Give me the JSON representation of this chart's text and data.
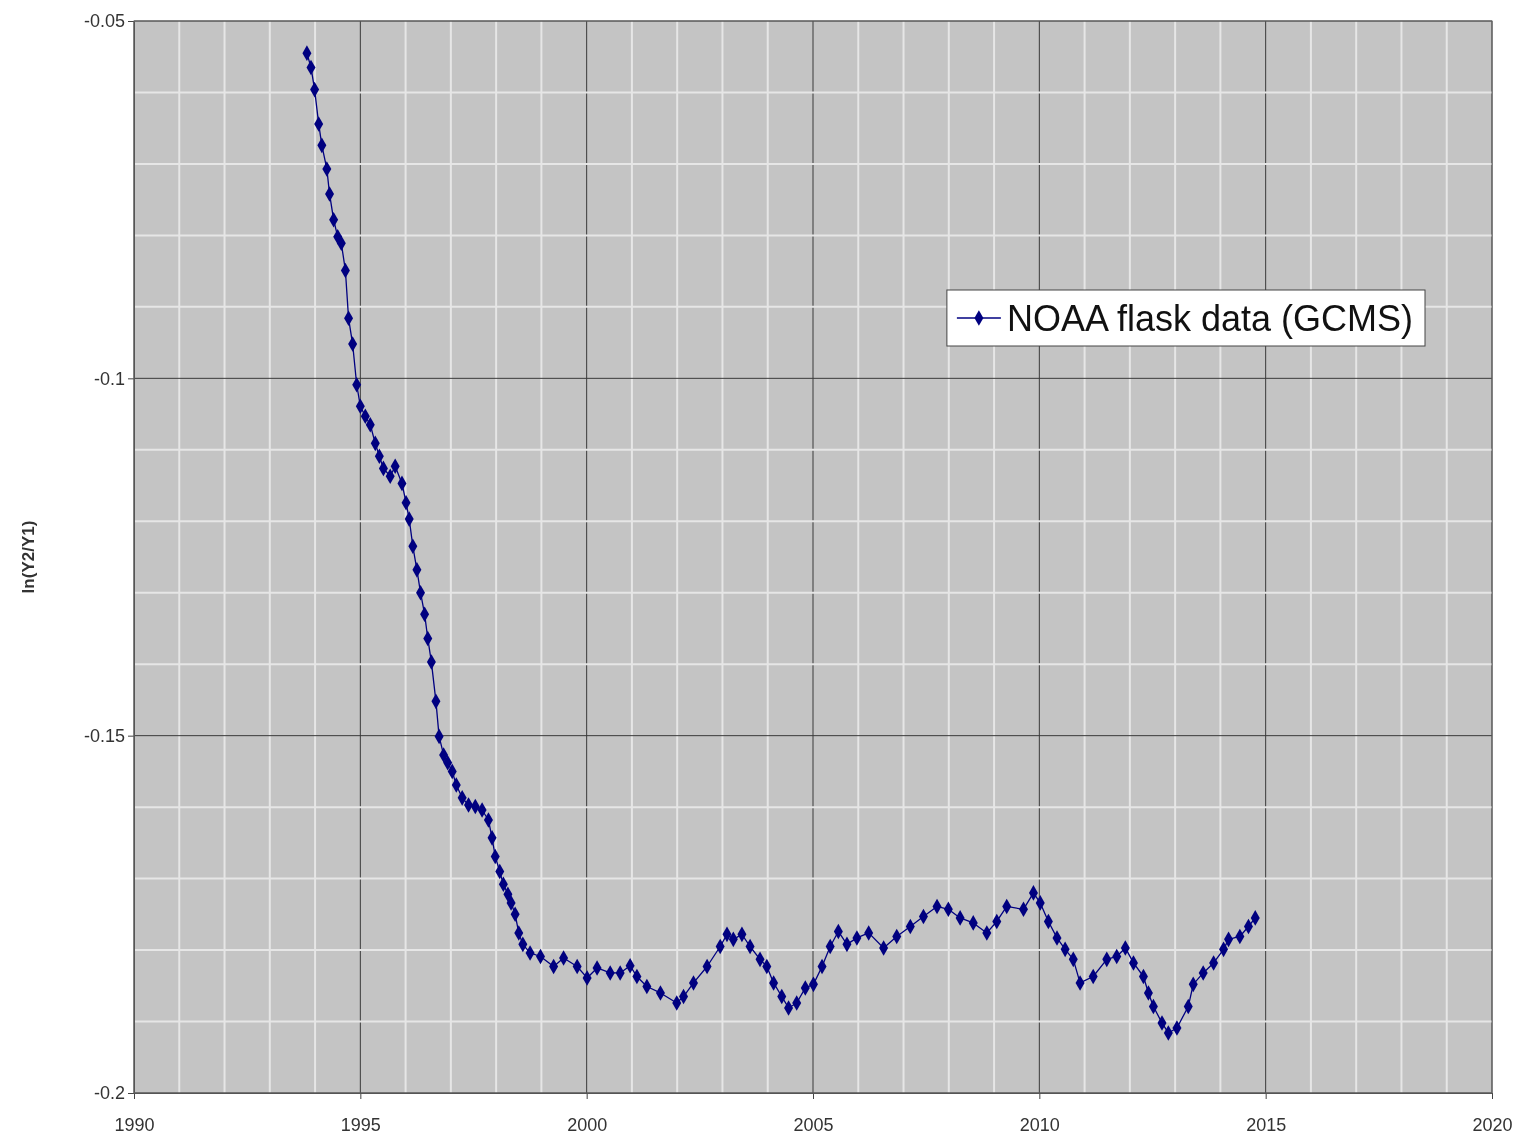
{
  "chart_data": {
    "type": "line",
    "ylabel": "ln(Y2/Y1)",
    "xlim": [
      1990,
      2020
    ],
    "ylim": [
      -0.2,
      -0.05
    ],
    "xticks": [
      1990,
      {
        "value": 1991,
        "label": null
      },
      {
        "value": 1992,
        "label": null
      },
      {
        "value": 1993,
        "label": null
      },
      {
        "value": 1994,
        "label": null
      },
      1995,
      {
        "value": 1996,
        "label": null
      },
      {
        "value": 1997,
        "label": null
      },
      {
        "value": 1998,
        "label": null
      },
      {
        "value": 1999,
        "label": null
      },
      2000,
      {
        "value": 2001,
        "label": null
      },
      {
        "value": 2002,
        "label": null
      },
      {
        "value": 2003,
        "label": null
      },
      {
        "value": 2004,
        "label": null
      },
      2005,
      {
        "value": 2006,
        "label": null
      },
      {
        "value": 2007,
        "label": null
      },
      {
        "value": 2008,
        "label": null
      },
      {
        "value": 2009,
        "label": null
      },
      2010,
      {
        "value": 2011,
        "label": null
      },
      {
        "value": 2012,
        "label": null
      },
      {
        "value": 2013,
        "label": null
      },
      {
        "value": 2014,
        "label": null
      },
      2015,
      {
        "value": 2016,
        "label": null
      },
      {
        "value": 2017,
        "label": null
      },
      {
        "value": 2018,
        "label": null
      },
      {
        "value": 2019,
        "label": null
      },
      2020
    ],
    "yticks": [
      -0.2,
      {
        "value": -0.19,
        "label": null
      },
      {
        "value": -0.18,
        "label": null
      },
      {
        "value": -0.17,
        "label": null
      },
      {
        "value": -0.16,
        "label": null
      },
      -0.15,
      {
        "value": -0.14,
        "label": null
      },
      {
        "value": -0.13,
        "label": null
      },
      {
        "value": -0.12,
        "label": null
      },
      {
        "value": -0.11,
        "label": null
      },
      -0.1,
      {
        "value": -0.09,
        "label": null
      },
      {
        "value": -0.08,
        "label": null
      },
      {
        "value": -0.07,
        "label": null
      },
      {
        "value": -0.06,
        "label": null
      },
      -0.05
    ],
    "grid": true,
    "legend": "top right",
    "marker": "diamond",
    "x": [
      1993.82,
      1993.91,
      1993.99,
      1994.08,
      1994.15,
      1994.26,
      1994.32,
      1994.41,
      1994.5,
      1994.58,
      1994.67,
      1994.74,
      1994.83,
      1994.92,
      1995.0,
      1995.11,
      1995.22,
      1995.33,
      1995.42,
      1995.51,
      1995.66,
      1995.77,
      1995.92,
      1996.01,
      1996.08,
      1996.16,
      1996.25,
      1996.33,
      1996.42,
      1996.49,
      1996.57,
      1996.67,
      1996.74,
      1996.84,
      1996.93,
      1997.03,
      1997.12,
      1997.25,
      1997.39,
      1997.54,
      1997.69,
      1997.83,
      1997.91,
      1997.98,
      1998.08,
      1998.16,
      1998.26,
      1998.33,
      1998.42,
      1998.5,
      1998.59,
      1998.75,
      1998.98,
      1999.27,
      1999.49,
      1999.79,
      2000.01,
      2000.23,
      2000.52,
      2000.74,
      2000.96,
      2001.11,
      2001.33,
      2001.63,
      2001.99,
      2002.14,
      2002.36,
      2002.66,
      2002.95,
      2003.1,
      2003.24,
      2003.43,
      2003.61,
      2003.83,
      2003.98,
      2004.13,
      2004.31,
      2004.46,
      2004.64,
      2004.83,
      2005.01,
      2005.2,
      2005.38,
      2005.56,
      2005.75,
      2005.97,
      2006.23,
      2006.56,
      2006.85,
      2007.15,
      2007.44,
      2007.74,
      2007.99,
      2008.25,
      2008.54,
      2008.84,
      2009.06,
      2009.28,
      2009.65,
      2009.87,
      2010.02,
      2010.2,
      2010.39,
      2010.57,
      2010.75,
      2010.9,
      2011.19,
      2011.49,
      2011.71,
      2011.9,
      2012.08,
      2012.3,
      2012.41,
      2012.52,
      2012.71,
      2012.85,
      2013.04,
      2013.29,
      2013.4,
      2013.62,
      2013.85,
      2014.07,
      2014.18,
      2014.43,
      2014.62,
      2014.77
    ],
    "series": [
      {
        "name": "NOAA flask data (GCMS)",
        "color": "#000080",
        "values": [
          -0.0545,
          -0.0565,
          -0.0596,
          -0.0644,
          -0.0674,
          -0.0707,
          -0.0742,
          -0.0778,
          -0.0802,
          -0.0811,
          -0.0849,
          -0.0916,
          -0.0952,
          -0.1009,
          -0.1039,
          -0.1053,
          -0.1065,
          -0.1091,
          -0.1109,
          -0.1126,
          -0.1137,
          -0.1123,
          -0.1147,
          -0.1174,
          -0.1197,
          -0.1235,
          -0.1268,
          -0.13,
          -0.133,
          -0.1364,
          -0.1397,
          -0.1452,
          -0.1501,
          -0.1527,
          -0.1538,
          -0.155,
          -0.1569,
          -0.1587,
          -0.1597,
          -0.1599,
          -0.1604,
          -0.1618,
          -0.1643,
          -0.1669,
          -0.169,
          -0.1708,
          -0.1722,
          -0.1734,
          -0.175,
          -0.1776,
          -0.1792,
          -0.1804,
          -0.1809,
          -0.1823,
          -0.1811,
          -0.1823,
          -0.1839,
          -0.1825,
          -0.1832,
          -0.1832,
          -0.1822,
          -0.1837,
          -0.1851,
          -0.186,
          -0.1874,
          -0.1865,
          -0.1846,
          -0.1823,
          -0.1795,
          -0.1778,
          -0.1785,
          -0.1778,
          -0.1795,
          -0.1813,
          -0.1823,
          -0.1846,
          -0.1865,
          -0.1881,
          -0.1874,
          -0.1853,
          -0.1848,
          -0.1823,
          -0.1795,
          -0.1774,
          -0.1792,
          -0.1783,
          -0.1776,
          -0.1797,
          -0.1781,
          -0.1767,
          -0.1753,
          -0.1739,
          -0.1743,
          -0.1755,
          -0.1762,
          -0.1776,
          -0.176,
          -0.1739,
          -0.1743,
          -0.172,
          -0.1734,
          -0.176,
          -0.1783,
          -0.1799,
          -0.1813,
          -0.1846,
          -0.1837,
          -0.1813,
          -0.1809,
          -0.1797,
          -0.1818,
          -0.1837,
          -0.186,
          -0.1879,
          -0.1902,
          -0.1916,
          -0.1909,
          -0.1879,
          -0.1848,
          -0.1832,
          -0.1818,
          -0.1799,
          -0.1785,
          -0.1781,
          -0.1767,
          -0.1755
        ]
      }
    ]
  }
}
